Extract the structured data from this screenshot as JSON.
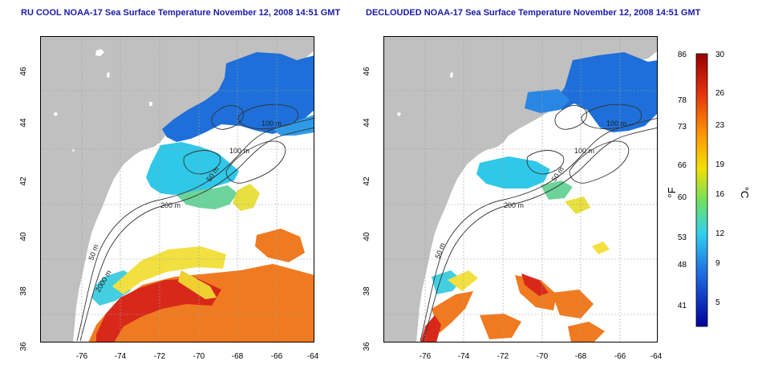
{
  "panels": [
    {
      "title": "RU COOL NOAA-17 Sea Surface Temperature November 12, 2008 14:51 GMT",
      "contour_labels": [
        "100 m",
        "100 m",
        "50 m",
        "200 m",
        "50 m",
        "2000 m"
      ]
    },
    {
      "title": "DECLOUDED NOAA-17 Sea Surface Temperature November 12, 2008 14:51 GMT",
      "contour_labels": [
        "100 m",
        "100 m",
        "50 m",
        "200 m",
        "50 m"
      ]
    }
  ],
  "axes": {
    "x_ticks": [
      "-76",
      "-74",
      "-72",
      "-70",
      "-68",
      "-66",
      "-64"
    ],
    "y_ticks": [
      "36",
      "38",
      "40",
      "42",
      "44",
      "46"
    ]
  },
  "colorbar": {
    "fahrenheit_label": "°F",
    "celsius_label": "°C",
    "fahrenheit_ticks": [
      "86",
      "78",
      "73",
      "66",
      "60",
      "53",
      "48",
      "41"
    ],
    "celsius_ticks": [
      "30",
      "26",
      "23",
      "19",
      "16",
      "12",
      "9",
      "5"
    ],
    "colors": {
      "max": "#990000",
      "c26": "#e03010",
      "c23": "#ff8c00",
      "c19": "#f2e000",
      "c16": "#70e060",
      "c12": "#30d0f0",
      "c9": "#2070e0",
      "min": "#0000a0"
    }
  },
  "colors": {
    "land": "#c0c0c0",
    "no_data": "#ffffff",
    "grid": "#a0a0a0",
    "title": "#1a1aa6"
  }
}
